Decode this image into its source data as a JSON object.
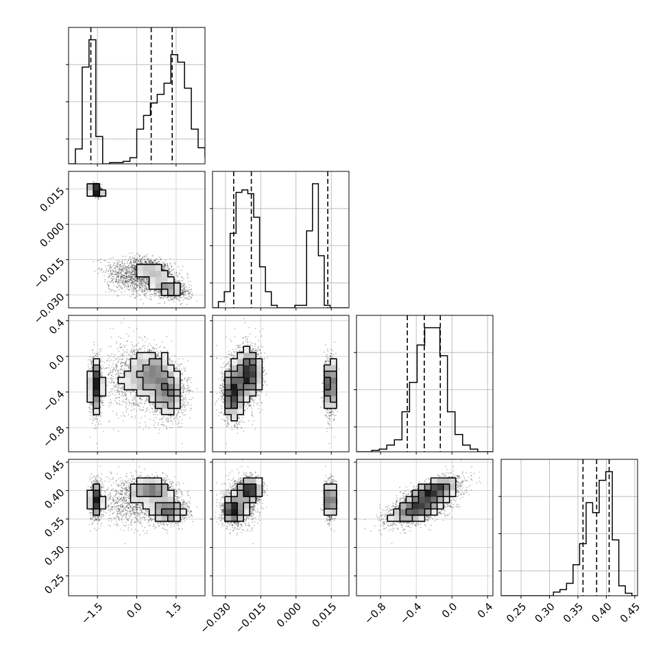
{
  "chart_data": {
    "type": "corner",
    "parameters": [
      {
        "id": "p0",
        "range": [
          -2.6,
          2.6
        ],
        "ticks": [
          -1.5,
          0.0,
          1.5
        ],
        "tick_labels": [
          "−1.5",
          "0.0",
          "1.5"
        ],
        "quantiles": [
          -1.75,
          0.55,
          1.35
        ],
        "hist": {
          "edges_start": -2.6,
          "bin_width": 0.26,
          "counts": [
            0,
            0.12,
            0.78,
            1.0,
            0.22,
            0.0,
            0.01,
            0.01,
            0.02,
            0.05,
            0.28,
            0.39,
            0.49,
            0.56,
            0.65,
            0.88,
            0.82,
            0.61,
            0.28,
            0.13,
            0.06,
            0.01
          ]
        }
      },
      {
        "id": "p1",
        "range": [
          -0.0355,
          0.0225
        ],
        "ticks": [
          -0.03,
          -0.015,
          0.0,
          0.015
        ],
        "tick_labels": [
          "−0.030",
          "−0.015",
          "0.000",
          "0.015"
        ],
        "quantiles": [
          -0.0265,
          -0.019,
          0.0135
        ],
        "hist": {
          "edges_start": -0.0355,
          "bin_width": 0.0025,
          "counts": [
            0.0,
            0.05,
            0.13,
            0.6,
            0.93,
            0.95,
            0.92,
            0.73,
            0.33,
            0.13,
            0.02,
            0.0,
            0.0,
            0.0,
            0.02,
            0.02,
            0.62,
            1.0,
            0.42,
            0.02,
            0.0,
            0.0,
            0.0
          ]
        }
      },
      {
        "id": "p2",
        "range": [
          -1.07,
          0.46
        ],
        "ticks": [
          -0.8,
          -0.4,
          0.0,
          0.4
        ],
        "tick_labels": [
          "−0.8",
          "−0.4",
          "0.0",
          "0.4"
        ],
        "quantiles": [
          -0.5,
          -0.31,
          -0.13
        ],
        "hist": {
          "edges_start": -1.07,
          "bin_width": 0.085,
          "counts": [
            0.0,
            0.0,
            0.01,
            0.02,
            0.05,
            0.09,
            0.3,
            0.52,
            0.8,
            0.93,
            0.93,
            0.72,
            0.3,
            0.13,
            0.05,
            0.02,
            0.0,
            0.0
          ]
        }
      },
      {
        "id": "p3",
        "range": [
          0.215,
          0.455
        ],
        "ticks": [
          0.25,
          0.3,
          0.35,
          0.4,
          0.45
        ],
        "tick_labels": [
          "0.25",
          "0.30",
          "0.35",
          "0.40",
          "0.45"
        ],
        "quantiles": [
          0.359,
          0.383,
          0.405
        ],
        "hist": {
          "edges_start": 0.215,
          "bin_width": 0.0115,
          "counts": [
            0.0,
            0.0,
            0.0,
            0.0,
            0.0,
            0.0,
            0.0,
            0.0,
            0.03,
            0.05,
            0.1,
            0.25,
            0.42,
            0.75,
            0.67,
            0.93,
            1.0,
            0.45,
            0.08,
            0.02,
            0.0
          ]
        }
      }
    ],
    "clusters": [
      {
        "weight": 0.22,
        "means": [
          -1.55,
          0.0145,
          -0.33,
          0.383
        ],
        "sds": [
          0.12,
          0.0013,
          0.16,
          0.018
        ]
      },
      {
        "weight": 0.28,
        "means": [
          0.6,
          -0.0195,
          -0.18,
          0.402
        ],
        "sds": [
          0.42,
          0.0028,
          0.13,
          0.011
        ]
      },
      {
        "weight": 0.3,
        "means": [
          1.2,
          -0.027,
          -0.42,
          0.365
        ],
        "sds": [
          0.35,
          0.0024,
          0.15,
          0.014
        ]
      },
      {
        "weight": 0.2,
        "means": [
          -0.2,
          -0.023,
          -0.25,
          0.38
        ],
        "sds": [
          0.55,
          0.004,
          0.2,
          0.025
        ]
      }
    ]
  }
}
